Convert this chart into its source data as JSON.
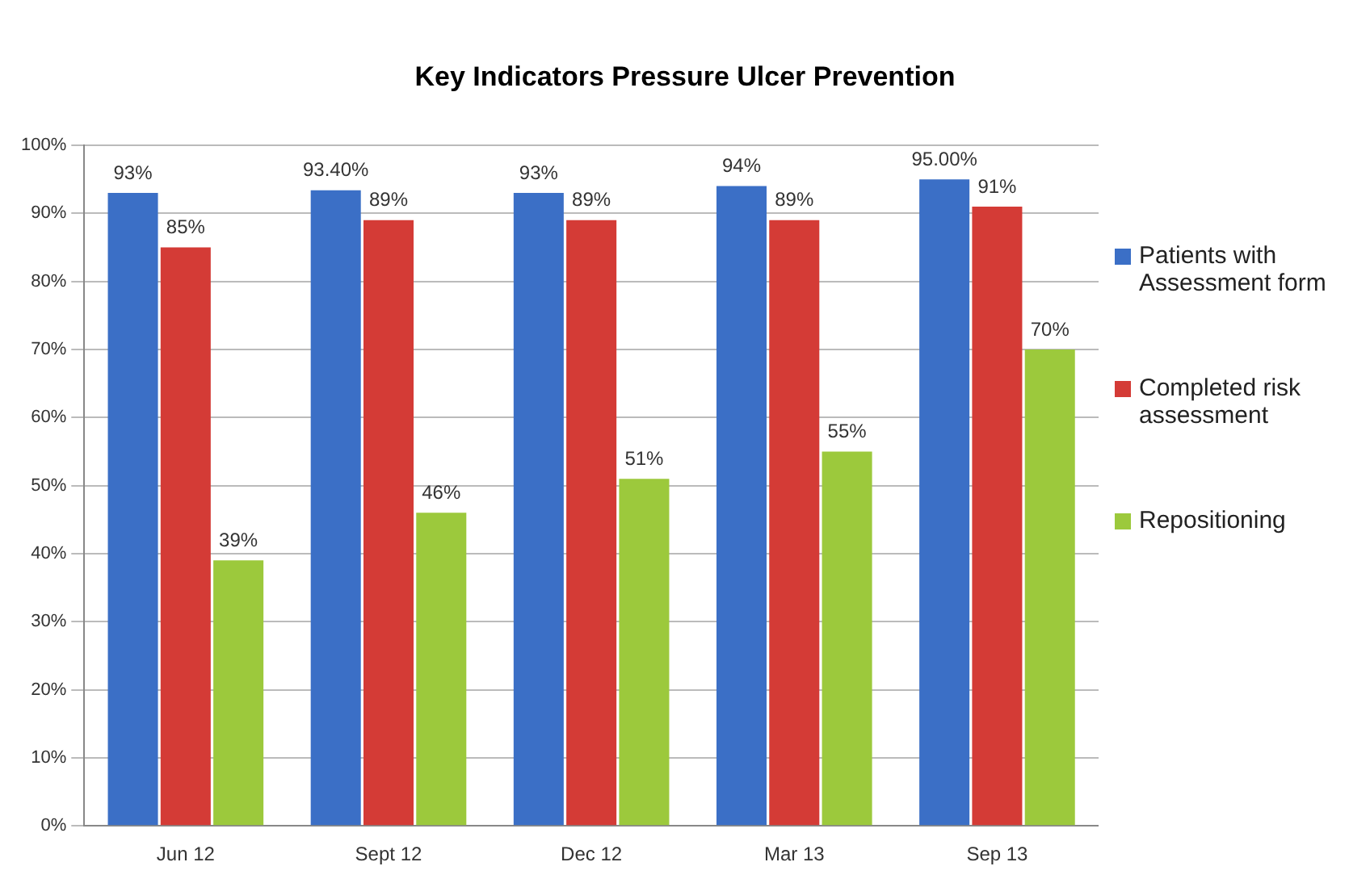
{
  "chart_data": {
    "type": "bar",
    "title": "Key Indicators Pressure Ulcer Prevention",
    "categories": [
      "Jun 12",
      "Sept 12",
      "Dec 12",
      "Mar 13",
      "Sep 13"
    ],
    "series": [
      {
        "name": "Patients with Assessment form",
        "color": "#3b6fc6",
        "values": [
          93,
          93.4,
          93,
          94,
          95
        ],
        "value_labels": [
          "93%",
          "93.40%",
          "93%",
          "94%",
          "95.00%"
        ]
      },
      {
        "name": "Completed risk assessment",
        "color": "#d43b36",
        "values": [
          85,
          89,
          89,
          89,
          91
        ],
        "value_labels": [
          "85%",
          "89%",
          "89%",
          "89%",
          "91%"
        ]
      },
      {
        "name": "Repositioning",
        "color": "#9cc93c",
        "values": [
          39,
          46,
          51,
          55,
          70
        ],
        "value_labels": [
          "39%",
          "46%",
          "51%",
          "55%",
          "70%"
        ]
      }
    ],
    "ylim": [
      0,
      100
    ],
    "yticks": [
      {
        "value": 0,
        "label": "0%"
      },
      {
        "value": 10,
        "label": "10%"
      },
      {
        "value": 20,
        "label": "20%"
      },
      {
        "value": 30,
        "label": "30%"
      },
      {
        "value": 40,
        "label": "40%"
      },
      {
        "value": 50,
        "label": "50%"
      },
      {
        "value": 60,
        "label": "60%"
      },
      {
        "value": 70,
        "label": "70%"
      },
      {
        "value": 80,
        "label": "80%"
      },
      {
        "value": 90,
        "label": "90%"
      },
      {
        "value": 100,
        "label": "100%"
      }
    ],
    "grid": "y",
    "legend": "right"
  }
}
